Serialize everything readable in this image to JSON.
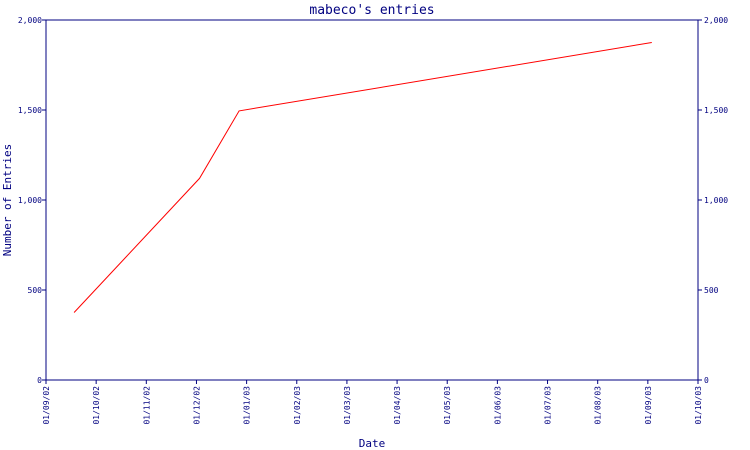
{
  "chart_data": {
    "type": "line",
    "title": "mabeco's entries",
    "xlabel": "Date",
    "ylabel": "Number of Entries",
    "x_ticks": [
      "01/09/02",
      "01/10/02",
      "01/11/02",
      "01/12/02",
      "01/01/03",
      "01/02/03",
      "01/03/03",
      "01/04/03",
      "01/05/03",
      "01/06/03",
      "01/07/03",
      "01/08/03",
      "01/09/03",
      "01/10/03"
    ],
    "xlim": [
      "2002-09-01",
      "2003-10-01"
    ],
    "y_ticks": [
      {
        "value": 0,
        "label": "0"
      },
      {
        "value": 500,
        "label": "500"
      },
      {
        "value": 1000,
        "label": "1,000"
      },
      {
        "value": 1500,
        "label": "1,500"
      },
      {
        "value": 2000,
        "label": "2,000"
      }
    ],
    "ylim": [
      0,
      2000
    ],
    "grid": false,
    "series": [
      {
        "color": "#ff0000",
        "points": [
          {
            "x": "2002-09-18",
            "y": 375
          },
          {
            "x": "2002-12-03",
            "y": 1120
          },
          {
            "x": "2002-12-27",
            "y": 1495
          },
          {
            "x": "2003-09-03",
            "y": 1875
          }
        ]
      }
    ],
    "colors": {
      "axis": "#000080",
      "title": "#000080",
      "line": "#ff0000"
    }
  }
}
